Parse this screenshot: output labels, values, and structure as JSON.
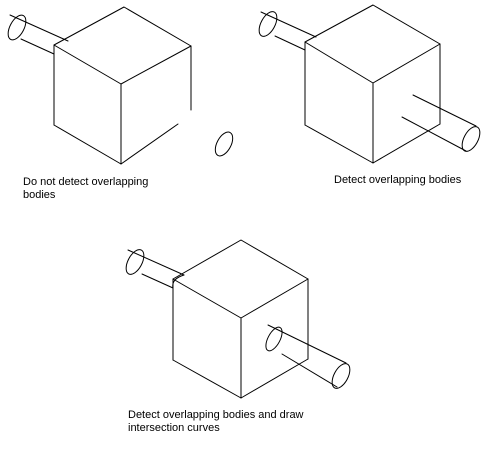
{
  "captions": {
    "no_detect": "Do not detect overlapping\nbodies",
    "detect": "Detect overlapping bodies",
    "detect_draw": "Detect overlapping bodies and draw\nintersection curves"
  },
  "colors": {
    "line": "#000000",
    "background": "#ffffff"
  }
}
